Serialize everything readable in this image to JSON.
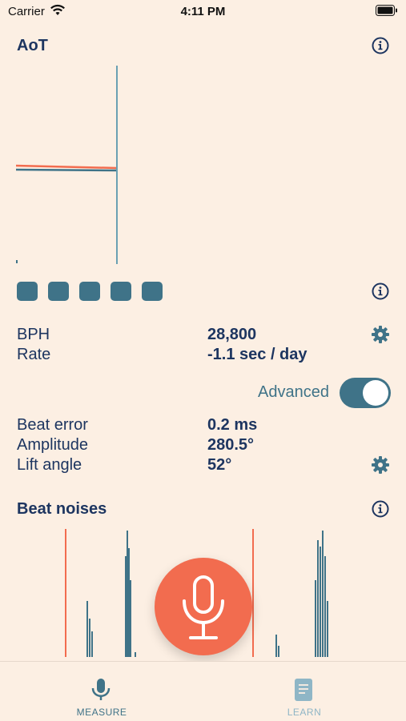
{
  "status": {
    "carrier": "Carrier",
    "time": "4:11 PM"
  },
  "aot": {
    "title": "AoT"
  },
  "metrics": {
    "bph_label": "BPH",
    "bph_value": "28,800",
    "rate_label": "Rate",
    "rate_value": "-1.1 sec / day"
  },
  "advanced": {
    "label": "Advanced",
    "enabled": true
  },
  "advanced_metrics": {
    "beat_error_label": "Beat error",
    "beat_error_value": "0.2 ms",
    "amplitude_label": "Amplitude",
    "amplitude_value": "280.5°",
    "lift_angle_label": "Lift angle",
    "lift_angle_value": "52°"
  },
  "beat_noises": {
    "title": "Beat noises"
  },
  "tabs": [
    {
      "label": "MEASURE",
      "icon": "mic-icon",
      "active": true
    },
    {
      "label": "LEARN",
      "icon": "book-icon",
      "active": false
    }
  ],
  "colors": {
    "accent": "#3f7388",
    "navy": "#1d3560",
    "orange": "#f26c4f",
    "background": "#fcefe3"
  }
}
